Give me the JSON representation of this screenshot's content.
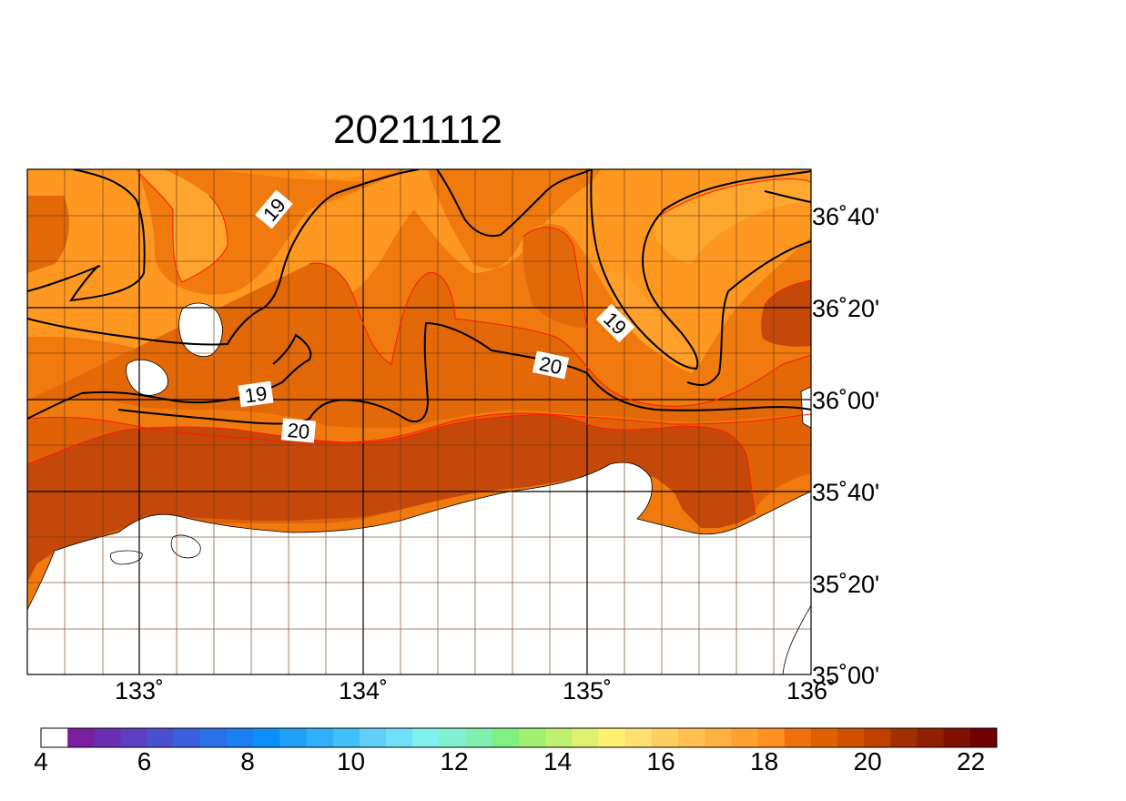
{
  "title": "20211112",
  "map": {
    "lon_ticks": [
      "133˚",
      "134˚",
      "135˚",
      "136˚"
    ],
    "lat_ticks": [
      "36˚40'",
      "36˚20'",
      "36˚00'",
      "35˚40'",
      "35˚20'",
      "35˚00'"
    ],
    "contour_labels": [
      {
        "id": "c19a",
        "text": "19"
      },
      {
        "id": "c19b",
        "text": "19"
      },
      {
        "id": "c19c",
        "text": "19"
      },
      {
        "id": "c20a",
        "text": "20"
      },
      {
        "id": "c20b",
        "text": "20"
      }
    ]
  },
  "colorbar": {
    "tick_labels": [
      "4",
      "6",
      "8",
      "10",
      "12",
      "14",
      "16",
      "18",
      "20",
      "22"
    ],
    "colors": [
      "#ffffff",
      "#7a1f9e",
      "#6a2fb0",
      "#5a3fc0",
      "#4a4fd0",
      "#3a60e0",
      "#2a70e8",
      "#1a80f0",
      "#0a90f8",
      "#20a0f8",
      "#30b0f8",
      "#40c0f8",
      "#60d0f8",
      "#70e0f8",
      "#80f0f0",
      "#80f0d0",
      "#80f0b0",
      "#80f080",
      "#a0f070",
      "#c0f070",
      "#e0f070",
      "#fff070",
      "#ffe070",
      "#ffd060",
      "#ffc050",
      "#ffb040",
      "#ffa030",
      "#ff9020",
      "#f07010",
      "#e06000",
      "#d05000",
      "#c04000",
      "#a03000",
      "#902000",
      "#801000",
      "#700000"
    ]
  }
}
